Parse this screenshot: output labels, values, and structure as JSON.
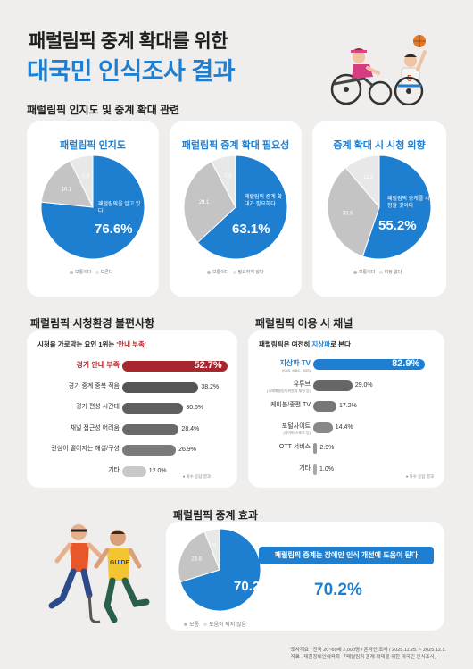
{
  "header": {
    "line1": "패럴림픽 중계 확대를 위한",
    "line2": "대국민 인식조사 결과"
  },
  "section1": {
    "heading": "패럴림픽 인지도 및 중계 확대 관련",
    "pies": [
      {
        "title": "패럴림픽 인지도",
        "inner_label": "패럴림픽을 알고 있다",
        "big": "76.6%",
        "legend": [
          "보통이다",
          "모른다"
        ]
      },
      {
        "title": "패럴림픽 중계 확대 필요성",
        "inner_label": "패럴림픽 중계 확대가 필요하다",
        "big": "63.1%",
        "legend": [
          "보통이다",
          "필요하지 않다"
        ]
      },
      {
        "title": "중계 확대 시 시청 의향",
        "inner_label": "패럴림픽 중계를 시청할 것이다",
        "big": "55.2%",
        "legend": [
          "보통이다",
          "미정 없다"
        ]
      }
    ]
  },
  "section2": {
    "heading": "패럴림픽 시청환경 불편사항",
    "sub_prefix": "시청을 가로막는 요인 1위는 ",
    "sub_highlight": "'안내 부족'",
    "note": "● 복수 응답 결과"
  },
  "section3": {
    "heading": "패럴림픽 이용 시 채널",
    "sub_prefix": "패럴림픽은 여전히 ",
    "sub_highlight": "지상파",
    "sub_suffix": "로 본다",
    "note": "● 복수 응답 결과"
  },
  "section4": {
    "heading": "패럴림픽 중계 효과",
    "callout": "패럴림픽 중계는 장애인 인식 개선에 도움이 된다",
    "big": "70.2%",
    "pie_center": "70.2",
    "legend": [
      "보통",
      "도움이 되지 않음"
    ]
  },
  "footer": {
    "line1": "조사개요 : 전국 20~69세 2,000명 / 온라인 조사 / 2025.11.25. ~ 2025.12.1.",
    "line2": "자료 : 대한장애인체육회 「패럴림픽 중계 확대를 위한 대국민 인식조사」"
  },
  "chart_data": [
    {
      "type": "pie",
      "title": "패럴림픽 인지도",
      "categories": [
        "패럴림픽을 알고 있다",
        "보통이다",
        "모른다"
      ],
      "values": [
        76.6,
        16.1,
        7.3
      ],
      "colors": [
        "#1e7fd0",
        "#c4c4c4",
        "#e8e8e8"
      ]
    },
    {
      "type": "pie",
      "title": "패럴림픽 중계 확대 필요성",
      "categories": [
        "패럴림픽 중계 확대가 필요하다",
        "보통이다",
        "필요하지 않다"
      ],
      "values": [
        63.1,
        29.1,
        7.8
      ],
      "colors": [
        "#1e7fd0",
        "#c4c4c4",
        "#e8e8e8"
      ]
    },
    {
      "type": "pie",
      "title": "중계 확대 시 시청 의향",
      "categories": [
        "패럴림픽 중계를 시청할 것이다",
        "보통이다",
        "미정 없다"
      ],
      "values": [
        55.2,
        33.6,
        11.2
      ],
      "colors": [
        "#1e7fd0",
        "#c4c4c4",
        "#e8e8e8"
      ]
    },
    {
      "type": "bar",
      "title": "패럴림픽 시청환경 불편사항",
      "categories": [
        "경기 안내 부족",
        "경기 중계 중복 적음",
        "경기 편성 시간대",
        "채널 접근성 어려움",
        "관심이 떨어지는 해설/구성",
        "기타"
      ],
      "values": [
        52.7,
        38.2,
        30.6,
        28.4,
        26.9,
        12.0
      ],
      "xlim": [
        0,
        60
      ]
    },
    {
      "type": "bar",
      "title": "패럴림픽 이용 시 채널",
      "categories": [
        "지상파 TV",
        "유튜브",
        "케이블/종편 TV",
        "포털사이트",
        "OTT 서비스",
        "기타"
      ],
      "sublabels": [
        "(KBS, MBC, SBS)",
        "(국제패럴림픽위원회 채널 등)",
        "",
        "(네이버 스포츠 등)",
        "",
        ""
      ],
      "values": [
        82.9,
        29.0,
        17.2,
        14.4,
        2.9,
        1.0
      ],
      "xlim": [
        0,
        90
      ]
    },
    {
      "type": "pie",
      "title": "패럴림픽 중계 효과",
      "categories": [
        "도움이 된다",
        "보통",
        "도움이 되지 않음"
      ],
      "values": [
        70.2,
        23.8,
        6.0
      ],
      "colors": [
        "#1e7fd0",
        "#c4c4c4",
        "#e8e8e8"
      ]
    }
  ]
}
